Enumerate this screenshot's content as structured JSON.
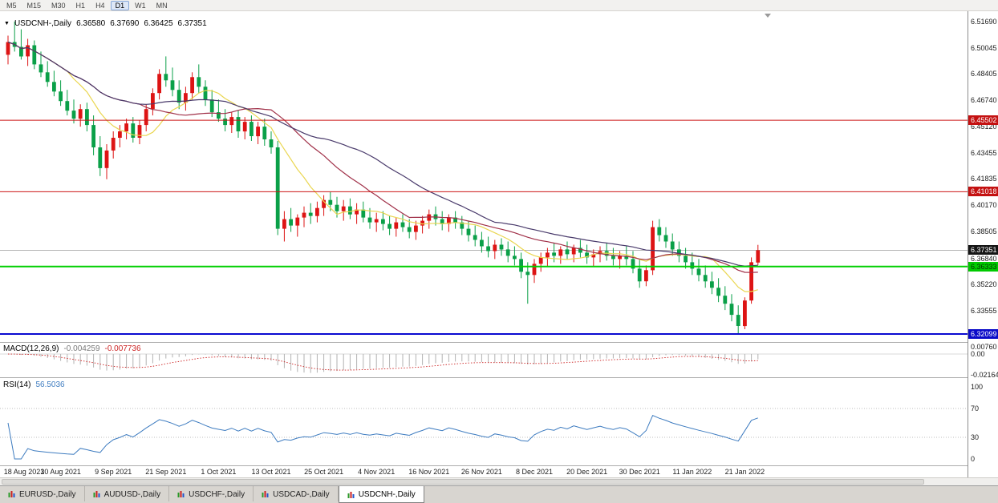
{
  "toolbar": {
    "timeframes": [
      {
        "label": "M5",
        "active": false
      },
      {
        "label": "M15",
        "active": false
      },
      {
        "label": "M30",
        "active": false
      },
      {
        "label": "H1",
        "active": false
      },
      {
        "label": "H4",
        "active": false
      },
      {
        "label": "D1",
        "active": true
      },
      {
        "label": "W1",
        "active": false
      },
      {
        "label": "MN",
        "active": false
      }
    ]
  },
  "chart": {
    "menu_marker": "▼",
    "symbol_timeframe": "USDCNH-,Daily",
    "open": "6.36580",
    "high": "6.37690",
    "low": "6.36425",
    "close": "6.37351"
  },
  "price_axis": {
    "ticks": [
      "6.51690",
      "6.50045",
      "6.48405",
      "6.46740",
      "6.45120",
      "6.43455",
      "6.41835",
      "6.40170",
      "6.38505",
      "6.36840",
      "6.35220",
      "6.33555"
    ],
    "badges": [
      {
        "label": "6.45502",
        "bg": "#c41111",
        "fg": "#ffffff"
      },
      {
        "label": "6.41018",
        "bg": "#c41111",
        "fg": "#ffffff"
      },
      {
        "label": "6.37351",
        "bg": "#151515",
        "fg": "#ffffff"
      },
      {
        "label": "6.36333",
        "bg": "#00ca00",
        "fg": "#033303"
      },
      {
        "label": "6.32099",
        "bg": "#0a0ac8",
        "fg": "#ffffff"
      }
    ]
  },
  "horizontal_lines": [
    {
      "price": 6.45502,
      "color": "#cc1515",
      "width": 1
    },
    {
      "price": 6.41018,
      "color": "#cc1515",
      "width": 1
    },
    {
      "price": 6.36333,
      "color": "#00cf00",
      "width": 2
    },
    {
      "price": 6.32099,
      "color": "#0a0ad0",
      "width": 2
    }
  ],
  "current_price_line": {
    "price": 6.37351,
    "color": "#9a9a9a"
  },
  "indicators": {
    "macd": {
      "name": "MACD(12,26,9)",
      "value": "-0.004259",
      "signal_value": "-0.007736",
      "fast": 12,
      "slow": 26,
      "signal": 9,
      "axis_labels": [
        "0.00760",
        "0.00",
        "-0.02164"
      ],
      "histogram_color": "#b2b2b2",
      "signal_color": "#cc2222"
    },
    "rsi": {
      "name": "RSI(14)",
      "value": "56.5036",
      "period": 14,
      "axis_labels": [
        "100",
        "70",
        "30",
        "0"
      ],
      "levels": [
        70,
        30
      ],
      "line_color": "#3e7cc0"
    }
  },
  "date_axis": [
    {
      "label": "18 Aug 2021",
      "index": 0
    },
    {
      "label": "30 Aug 2021",
      "index": 8
    },
    {
      "label": "9 Sep 2021",
      "index": 16
    },
    {
      "label": "21 Sep 2021",
      "index": 24
    },
    {
      "label": "1 Oct 2021",
      "index": 32
    },
    {
      "label": "13 Oct 2021",
      "index": 40
    },
    {
      "label": "25 Oct 2021",
      "index": 48
    },
    {
      "label": "4 Nov 2021",
      "index": 56
    },
    {
      "label": "16 Nov 2021",
      "index": 64
    },
    {
      "label": "26 Nov 2021",
      "index": 72
    },
    {
      "label": "8 Dec 2021",
      "index": 80
    },
    {
      "label": "20 Dec 2021",
      "index": 88
    },
    {
      "label": "30 Dec 2021",
      "index": 96
    },
    {
      "label": "11 Jan 2022",
      "index": 104
    },
    {
      "label": "21 Jan 2022",
      "index": 112
    }
  ],
  "tabs": [
    {
      "label": "EURUSD-,Daily",
      "active": false
    },
    {
      "label": "AUDUSD-,Daily",
      "active": false
    },
    {
      "label": "USDCHF-,Daily",
      "active": false
    },
    {
      "label": "USDCAD-,Daily",
      "active": false
    },
    {
      "label": "USDCNH-,Daily",
      "active": true
    }
  ],
  "chart_data": {
    "type": "candlestick",
    "symbol": "USDCNH",
    "timeframe": "Daily",
    "up_color": "#dd1414",
    "down_color": "#0aa048",
    "price_range_visible": [
      6.317,
      6.518
    ],
    "ma_lines": [
      {
        "period": 10,
        "color": "#ead650"
      },
      {
        "period": 21,
        "color": "#a03048"
      },
      {
        "period": 34,
        "color": "#493a6b"
      }
    ],
    "candles": [
      [
        6.496,
        6.508,
        6.49,
        6.504
      ],
      [
        6.504,
        6.5169,
        6.498,
        6.501
      ],
      [
        6.501,
        6.512,
        6.493,
        6.495
      ],
      [
        6.495,
        6.506,
        6.489,
        6.502
      ],
      [
        6.502,
        6.505,
        6.487,
        6.49
      ],
      [
        6.49,
        6.498,
        6.482,
        6.485
      ],
      [
        6.485,
        6.492,
        6.476,
        6.479
      ],
      [
        6.479,
        6.486,
        6.47,
        6.473
      ],
      [
        6.473,
        6.48,
        6.464,
        6.467
      ],
      [
        6.467,
        6.474,
        6.458,
        6.461
      ],
      [
        6.461,
        6.468,
        6.453,
        6.456
      ],
      [
        6.456,
        6.465,
        6.451,
        6.462
      ],
      [
        6.462,
        6.466,
        6.448,
        6.452
      ],
      [
        6.452,
        6.458,
        6.433,
        6.438
      ],
      [
        6.438,
        6.445,
        6.42,
        6.425
      ],
      [
        6.425,
        6.44,
        6.418,
        6.436
      ],
      [
        6.436,
        6.448,
        6.431,
        6.444
      ],
      [
        6.444,
        6.452,
        6.438,
        6.448
      ],
      [
        6.448,
        6.456,
        6.443,
        6.453
      ],
      [
        6.453,
        6.457,
        6.441,
        6.444
      ],
      [
        6.444,
        6.455,
        6.44,
        6.452
      ],
      [
        6.452,
        6.465,
        6.448,
        6.462
      ],
      [
        6.462,
        6.475,
        6.458,
        6.472
      ],
      [
        6.472,
        6.487,
        6.468,
        6.484
      ],
      [
        6.484,
        6.495,
        6.476,
        6.48
      ],
      [
        6.48,
        6.488,
        6.47,
        6.474
      ],
      [
        6.474,
        6.48,
        6.462,
        6.466
      ],
      [
        6.466,
        6.476,
        6.461,
        6.472
      ],
      [
        6.472,
        6.485,
        6.468,
        6.482
      ],
      [
        6.482,
        6.49,
        6.472,
        6.476
      ],
      [
        6.476,
        6.48,
        6.464,
        6.468
      ],
      [
        6.468,
        6.474,
        6.457,
        6.46
      ],
      [
        6.46,
        6.468,
        6.454,
        6.456
      ],
      [
        6.456,
        6.462,
        6.448,
        6.452
      ],
      [
        6.452,
        6.46,
        6.447,
        6.457
      ],
      [
        6.457,
        6.461,
        6.444,
        6.448
      ],
      [
        6.448,
        6.457,
        6.443,
        6.454
      ],
      [
        6.454,
        6.458,
        6.442,
        6.445
      ],
      [
        6.445,
        6.454,
        6.44,
        6.451
      ],
      [
        6.451,
        6.456,
        6.439,
        6.443
      ],
      [
        6.443,
        6.448,
        6.434,
        6.438
      ],
      [
        6.438,
        6.442,
        6.383,
        6.387
      ],
      [
        6.387,
        6.398,
        6.379,
        6.393
      ],
      [
        6.393,
        6.4,
        6.385,
        6.389
      ],
      [
        6.389,
        6.396,
        6.382,
        6.394
      ],
      [
        6.394,
        6.401,
        6.388,
        6.397
      ],
      [
        6.397,
        6.403,
        6.39,
        6.395
      ],
      [
        6.395,
        6.404,
        6.391,
        6.4
      ],
      [
        6.4,
        6.408,
        6.395,
        6.405
      ],
      [
        6.405,
        6.41,
        6.398,
        6.402
      ],
      [
        6.402,
        6.407,
        6.394,
        6.398
      ],
      [
        6.398,
        6.405,
        6.392,
        6.401
      ],
      [
        6.401,
        6.406,
        6.393,
        6.396
      ],
      [
        6.396,
        6.403,
        6.39,
        6.399
      ],
      [
        6.399,
        6.404,
        6.391,
        6.394
      ],
      [
        6.394,
        6.4,
        6.387,
        6.391
      ],
      [
        6.391,
        6.397,
        6.385,
        6.393
      ],
      [
        6.393,
        6.398,
        6.386,
        6.39
      ],
      [
        6.39,
        6.395,
        6.383,
        6.387
      ],
      [
        6.387,
        6.394,
        6.382,
        6.391
      ],
      [
        6.391,
        6.396,
        6.385,
        6.388
      ],
      [
        6.388,
        6.393,
        6.381,
        6.385
      ],
      [
        6.385,
        6.392,
        6.38,
        6.389
      ],
      [
        6.389,
        6.395,
        6.384,
        6.392
      ],
      [
        6.392,
        6.399,
        6.387,
        6.396
      ],
      [
        6.396,
        6.401,
        6.389,
        6.393
      ],
      [
        6.393,
        6.398,
        6.386,
        6.39
      ],
      [
        6.39,
        6.396,
        6.385,
        6.394
      ],
      [
        6.394,
        6.398,
        6.387,
        6.391
      ],
      [
        6.391,
        6.395,
        6.383,
        6.387
      ],
      [
        6.387,
        6.392,
        6.379,
        6.383
      ],
      [
        6.383,
        6.389,
        6.376,
        6.38
      ],
      [
        6.38,
        6.385,
        6.372,
        6.376
      ],
      [
        6.376,
        6.382,
        6.369,
        6.373
      ],
      [
        6.373,
        6.38,
        6.368,
        6.377
      ],
      [
        6.377,
        6.381,
        6.37,
        6.374
      ],
      [
        6.374,
        6.379,
        6.366,
        6.37
      ],
      [
        6.37,
        6.376,
        6.364,
        6.368
      ],
      [
        6.368,
        6.372,
        6.356,
        6.36
      ],
      [
        6.36,
        6.366,
        6.34,
        6.358
      ],
      [
        6.358,
        6.368,
        6.353,
        6.365
      ],
      [
        6.365,
        6.372,
        6.36,
        6.369
      ],
      [
        6.369,
        6.375,
        6.363,
        6.372
      ],
      [
        6.372,
        6.378,
        6.366,
        6.37
      ],
      [
        6.37,
        6.376,
        6.365,
        6.374
      ],
      [
        6.374,
        6.379,
        6.368,
        6.371
      ],
      [
        6.371,
        6.377,
        6.366,
        6.375
      ],
      [
        6.375,
        6.38,
        6.369,
        6.372
      ],
      [
        6.372,
        6.377,
        6.365,
        6.369
      ],
      [
        6.369,
        6.374,
        6.363,
        6.371
      ],
      [
        6.371,
        6.376,
        6.366,
        6.373
      ],
      [
        6.373,
        6.378,
        6.367,
        6.37
      ],
      [
        6.37,
        6.375,
        6.364,
        6.368
      ],
      [
        6.368,
        6.373,
        6.362,
        6.37
      ],
      [
        6.37,
        6.376,
        6.364,
        6.368
      ],
      [
        6.368,
        6.373,
        6.359,
        6.362
      ],
      [
        6.362,
        6.368,
        6.35,
        6.354
      ],
      [
        6.354,
        6.364,
        6.351,
        6.361
      ],
      [
        6.361,
        6.392,
        6.358,
        6.388
      ],
      [
        6.388,
        6.393,
        6.379,
        6.383
      ],
      [
        6.383,
        6.388,
        6.375,
        6.379
      ],
      [
        6.379,
        6.384,
        6.37,
        6.374
      ],
      [
        6.374,
        6.379,
        6.366,
        6.37
      ],
      [
        6.37,
        6.375,
        6.362,
        6.366
      ],
      [
        6.366,
        6.372,
        6.358,
        6.362
      ],
      [
        6.362,
        6.368,
        6.354,
        6.358
      ],
      [
        6.358,
        6.364,
        6.35,
        6.354
      ],
      [
        6.354,
        6.36,
        6.346,
        6.35
      ],
      [
        6.35,
        6.356,
        6.341,
        6.345
      ],
      [
        6.345,
        6.351,
        6.336,
        6.34
      ],
      [
        6.34,
        6.346,
        6.329,
        6.333
      ],
      [
        6.333,
        6.339,
        6.321,
        6.326
      ],
      [
        6.326,
        6.344,
        6.324,
        6.342
      ],
      [
        6.342,
        6.369,
        6.34,
        6.366
      ],
      [
        6.3658,
        6.3769,
        6.36425,
        6.37351
      ]
    ]
  }
}
